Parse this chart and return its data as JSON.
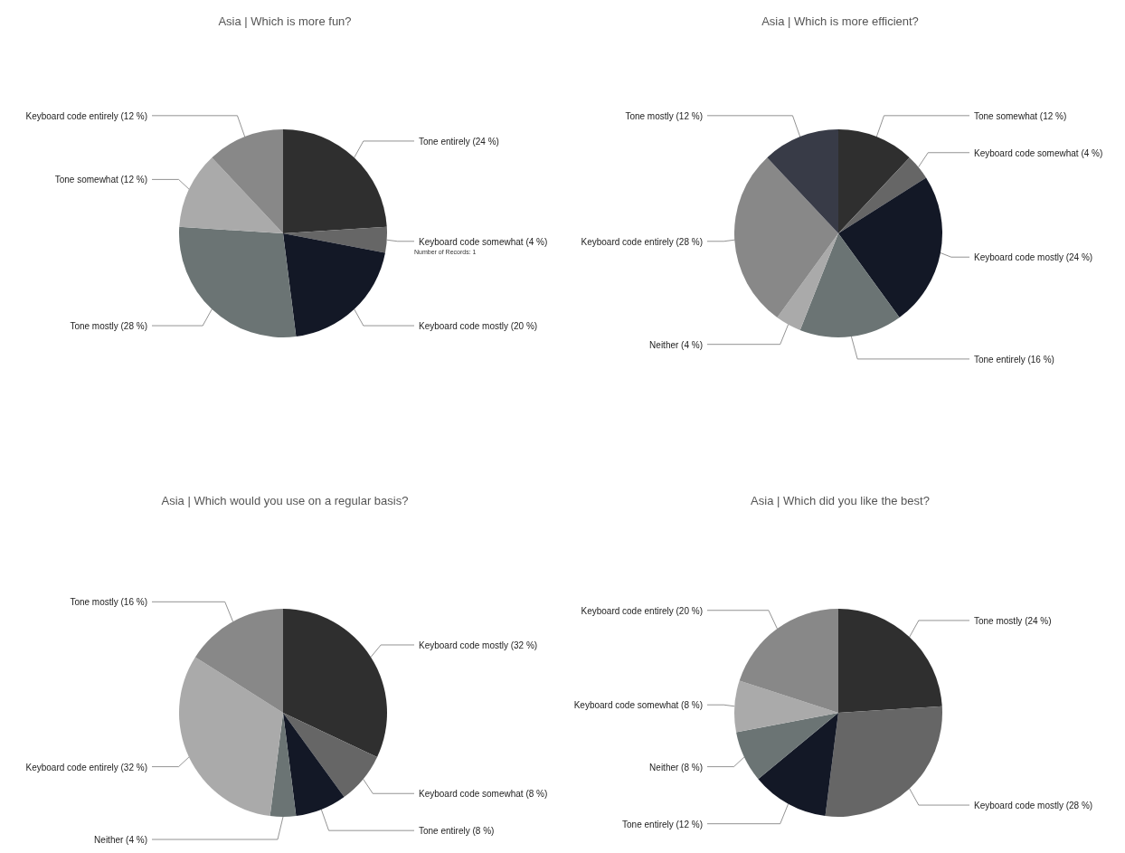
{
  "chart_data": [
    {
      "type": "pie",
      "title": "Asia | Which is more fun?",
      "categories": [
        "Tone entirely (24 %)",
        "Keyboard code somewhat (4 %)",
        "Keyboard code mostly (20 %)",
        "Tone mostly (28 %)",
        "Tone somewhat (12 %)",
        "Keyboard code entirely (12 %)"
      ],
      "values": [
        24,
        4,
        20,
        28,
        12,
        12
      ],
      "colors": [
        "#2f2f2f",
        "#666666",
        "#131826",
        "#6b7474",
        "#aaaaaa",
        "#888888"
      ],
      "annotations": [
        "Number of Records: 1"
      ],
      "legend": false
    },
    {
      "type": "pie",
      "title": "Asia | Which is more efficient?",
      "categories": [
        "Tone somewhat (12 %)",
        "Keyboard code somewhat (4 %)",
        "Keyboard code mostly (24 %)",
        "Tone entirely (16 %)",
        "Neither (4 %)",
        "Keyboard code entirely (28 %)",
        "Tone mostly (12 %)"
      ],
      "values": [
        12,
        4,
        24,
        16,
        4,
        28,
        12
      ],
      "colors": [
        "#2f2f2f",
        "#666666",
        "#131826",
        "#6b7474",
        "#aaaaaa",
        "#888888",
        "#383b47"
      ],
      "legend": false
    },
    {
      "type": "pie",
      "title": "Asia | Which would you use on a regular basis?",
      "categories": [
        "Keyboard code mostly (32 %)",
        "Keyboard code somewhat (8 %)",
        "Tone entirely (8 %)",
        "Neither (4 %)",
        "Keyboard code entirely (32 %)",
        "Tone mostly (16 %)"
      ],
      "values": [
        32,
        8,
        8,
        4,
        32,
        16
      ],
      "colors": [
        "#2f2f2f",
        "#666666",
        "#131826",
        "#6b7474",
        "#aaaaaa",
        "#888888"
      ],
      "legend": false
    },
    {
      "type": "pie",
      "title": "Asia | Which did you like the best?",
      "categories": [
        "Tone mostly (24 %)",
        "Keyboard code mostly (28 %)",
        "Tone entirely (12 %)",
        "Neither (8 %)",
        "Keyboard code somewhat (8 %)",
        "Keyboard code entirely (20 %)"
      ],
      "values": [
        24,
        28,
        12,
        8,
        8,
        20
      ],
      "colors": [
        "#2f2f2f",
        "#666666",
        "#131826",
        "#6b7474",
        "#aaaaaa",
        "#888888"
      ],
      "legend": false
    }
  ]
}
